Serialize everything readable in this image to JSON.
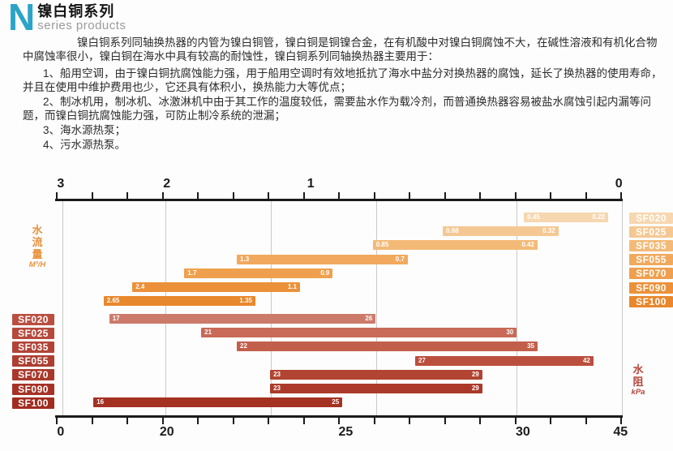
{
  "header": {
    "logo_letter": "N",
    "logo_color": "#2ba4c8",
    "title": "镍白铜系列",
    "subtitle": "series products"
  },
  "description": {
    "intro": "镍白铜系列同轴换热器的内管为镍白铜管，镍白铜是铜镍合金，在有机酸中对镍白铜腐蚀不大，在碱性溶液和有机化合物中腐蚀率很小，镍白铜在海水中具有较高的耐蚀性，镍白铜系列同轴换热器主要用于：",
    "items": [
      "1、船用空调，由于镍白铜抗腐蚀能力强，用于船用空调时有效地抵抗了海水中盐分对换热器的腐蚀，延长了换热器的使用寿命，并且在使用中维护费用也少，它还具有体积小，换热能力大等优点；",
      "2、制冰机用，制冰机、冰激淋机中由于其工作的温度较低，需要盐水作为载冷剂，而普通换热器容易被盐水腐蚀引起内漏等问题，而镍白铜抗腐蚀能力强，可防止制冷系统的泄漏；",
      "3、海水源热泵；",
      "4、污水源热泵。"
    ]
  },
  "chart_data": {
    "type": "bar",
    "subtype": "horizontal-range-bars",
    "models": [
      "SF020",
      "SF025",
      "SF035",
      "SF055",
      "SF070",
      "SF090",
      "SF100"
    ],
    "flow_axis": {
      "title": "水流量",
      "unit": "M³/H",
      "side": "top",
      "direction": "right-to-left",
      "color": "#e8923d",
      "minor_ticks": 17,
      "ticks": [
        {
          "label": "3",
          "pct": 0.7
        },
        {
          "label": "2",
          "pct": 19.5
        },
        {
          "label": "1",
          "pct": 45.0
        },
        {
          "label": "0",
          "pct": 99.6
        }
      ]
    },
    "resistance_axis": {
      "title": "水阻",
      "unit": "kPa",
      "side": "bottom",
      "color": "#b5463a",
      "minor_ticks": 17,
      "ticks": [
        {
          "label": "0",
          "pct": 0.7
        },
        {
          "label": "20",
          "pct": 19.5
        },
        {
          "label": "25",
          "pct": 51.2
        },
        {
          "label": "30",
          "pct": 82.6
        },
        {
          "label": "45",
          "pct": 99.9
        }
      ]
    },
    "gridlines_pct": [
      1.0,
      19.3,
      37.9,
      56.6,
      81.5,
      100.2
    ],
    "flow_series": {
      "name": "水流量 (M³/H)",
      "bars": [
        {
          "model": "SF020",
          "from": 0.45,
          "to": 0.22,
          "left_pct": 82.8,
          "width_pct": 14.9,
          "color": "#f7d7b0"
        },
        {
          "model": "SF025",
          "from": 0.68,
          "to": 0.32,
          "left_pct": 68.4,
          "width_pct": 20.5,
          "color": "#f5c893"
        },
        {
          "model": "SF035",
          "from": 0.85,
          "to": 0.42,
          "left_pct": 56.0,
          "width_pct": 29.2,
          "color": "#f3ba77"
        },
        {
          "model": "SF055",
          "from": 1.3,
          "to": 0.7,
          "left_pct": 31.9,
          "width_pct": 30.3,
          "color": "#f1a95d"
        },
        {
          "model": "SF070",
          "from": 1.7,
          "to": 0.9,
          "left_pct": 22.6,
          "width_pct": 26.3,
          "color": "#efa04e"
        },
        {
          "model": "SF090",
          "from": 2.4,
          "to": 1.1,
          "left_pct": 13.4,
          "width_pct": 29.7,
          "color": "#ec9139"
        },
        {
          "model": "SF100",
          "from": 2.65,
          "to": 1.35,
          "left_pct": 8.3,
          "width_pct": 26.9,
          "color": "#e9872c"
        }
      ]
    },
    "resistance_series": {
      "name": "水阻 (kPa)",
      "bars": [
        {
          "model": "SF020",
          "from": 17,
          "to": 26,
          "left_pct": 9.3,
          "width_pct": 47.2,
          "color": "#cc7b6b"
        },
        {
          "model": "SF025",
          "from": 21,
          "to": 30,
          "left_pct": 25.6,
          "width_pct": 55.9,
          "color": "#c86a57"
        },
        {
          "model": "SF035",
          "from": 22,
          "to": 35,
          "left_pct": 31.9,
          "width_pct": 53.3,
          "color": "#c25f4b"
        },
        {
          "model": "SF055",
          "from": 27,
          "to": 42,
          "left_pct": 63.5,
          "width_pct": 31.6,
          "color": "#bb4f3e"
        },
        {
          "model": "SF070",
          "from": 23,
          "to": 29,
          "left_pct": 37.8,
          "width_pct": 37.6,
          "color": "#b24432"
        },
        {
          "model": "SF090",
          "from": 23,
          "to": 29,
          "left_pct": 37.8,
          "width_pct": 37.6,
          "color": "#ac3a2a"
        },
        {
          "model": "SF100",
          "from": 16,
          "to": 25,
          "left_pct": 6.5,
          "width_pct": 44.1,
          "color": "#a53122"
        }
      ]
    },
    "left_label_colors": [
      "#b94f41",
      "#b54a3c",
      "#b14437",
      "#ad3e31",
      "#a9382b",
      "#a53226",
      "#a12c20"
    ],
    "legend_position": "right-and-left-model-tags",
    "grid": true
  }
}
